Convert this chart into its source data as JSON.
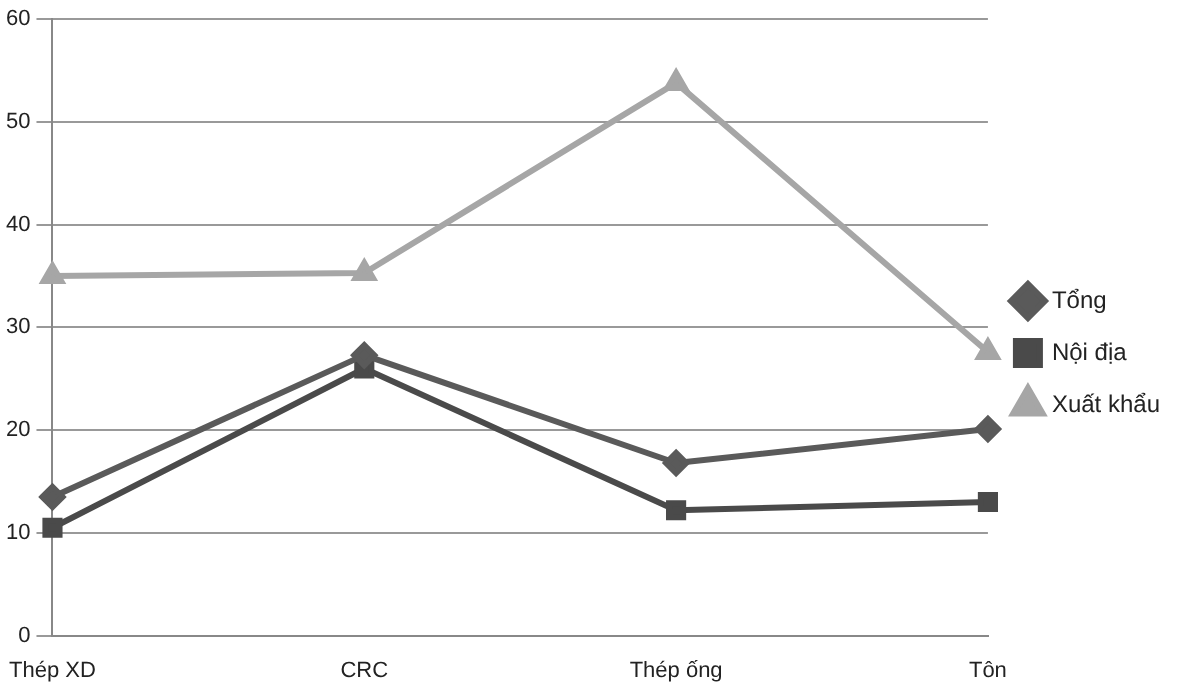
{
  "chart_data": {
    "type": "line",
    "categories": [
      "Thép XD",
      "CRC",
      "Thép ống",
      "Tôn"
    ],
    "series": [
      {
        "name": "Tổng",
        "color": "#5a5a5a",
        "marker": "diamond",
        "values": [
          13.5,
          27.3,
          16.8,
          20.1
        ]
      },
      {
        "name": "Nội địa",
        "color": "#4a4a4a",
        "marker": "square",
        "values": [
          10.5,
          26,
          12.2,
          13
        ]
      },
      {
        "name": "Xuất khẩu",
        "color": "#a6a6a6",
        "marker": "triangle",
        "values": [
          35,
          35.3,
          53.8,
          27.6
        ]
      }
    ],
    "ylim": [
      0,
      60
    ],
    "yticks": [
      0,
      10,
      20,
      30,
      40,
      50,
      60
    ],
    "grid": "y",
    "legend": "right",
    "line_style": "solid"
  }
}
